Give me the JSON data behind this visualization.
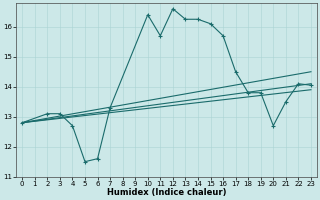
{
  "xlabel": "Humidex (Indice chaleur)",
  "xlim": [
    -0.5,
    23.5
  ],
  "ylim": [
    11,
    16.8
  ],
  "yticks": [
    11,
    12,
    13,
    14,
    15,
    16
  ],
  "xticks": [
    0,
    1,
    2,
    3,
    4,
    5,
    6,
    7,
    8,
    9,
    10,
    11,
    12,
    13,
    14,
    15,
    16,
    17,
    18,
    19,
    20,
    21,
    22,
    23
  ],
  "background_color": "#cce8e8",
  "grid_color": "#aad4d4",
  "line_color": "#1a6b6b",
  "line1_x": [
    0,
    2,
    3,
    4,
    5,
    6,
    7,
    10,
    11,
    12,
    13,
    14,
    15,
    16,
    17,
    18,
    19,
    20,
    21,
    22,
    23
  ],
  "line1_y": [
    12.8,
    13.1,
    13.1,
    12.7,
    11.5,
    11.6,
    13.3,
    16.4,
    15.7,
    16.6,
    16.25,
    16.25,
    16.1,
    15.7,
    14.5,
    13.8,
    13.8,
    12.7,
    13.5,
    14.1,
    14.05
  ]
}
